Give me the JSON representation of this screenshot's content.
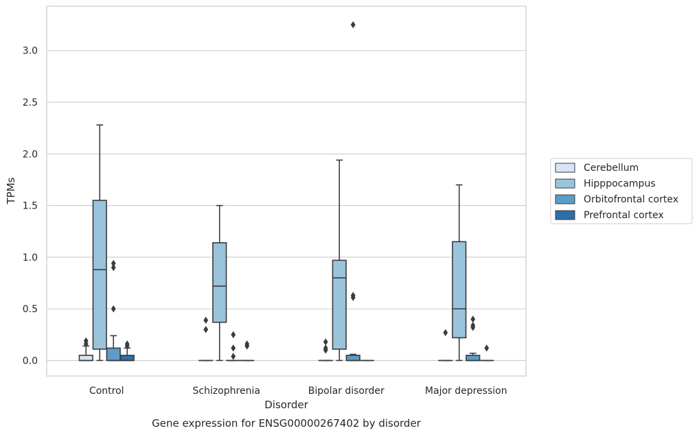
{
  "chart_data": {
    "type": "box",
    "caption": "Gene expression for ENSG00000267402 by disorder",
    "xlabel": "Disorder",
    "ylabel": "TPMs",
    "ylim": [
      -0.15,
      3.43
    ],
    "yticks": [
      "0.0",
      "0.5",
      "1.0",
      "1.5",
      "2.0",
      "2.5",
      "3.0"
    ],
    "grid": true,
    "legend_placement": "right",
    "categories": [
      "Control",
      "Schizophrenia",
      "Bipolar disorder",
      "Major depression"
    ],
    "series": [
      {
        "name": "Cerebellum",
        "color": "#d6e6f4",
        "boxes": [
          {
            "q1": 0.0,
            "median": 0.0,
            "q3": 0.05,
            "whisker_low": 0.0,
            "whisker_high": 0.14,
            "outliers": [
              0.16,
              0.19
            ]
          },
          {
            "q1": 0.0,
            "median": 0.0,
            "q3": 0.0,
            "whisker_low": 0.0,
            "whisker_high": 0.0,
            "outliers": [
              0.3,
              0.39
            ]
          },
          {
            "q1": 0.0,
            "median": 0.0,
            "q3": 0.0,
            "whisker_low": 0.0,
            "whisker_high": 0.0,
            "outliers": [
              0.1,
              0.12,
              0.18
            ]
          },
          {
            "q1": 0.0,
            "median": 0.0,
            "q3": 0.0,
            "whisker_low": 0.0,
            "whisker_high": 0.0,
            "outliers": [
              0.27
            ]
          }
        ]
      },
      {
        "name": "Hipppocampus",
        "color": "#9ac3dc",
        "boxes": [
          {
            "q1": 0.11,
            "median": 0.88,
            "q3": 1.55,
            "whisker_low": 0.0,
            "whisker_high": 2.28,
            "outliers": []
          },
          {
            "q1": 0.37,
            "median": 0.72,
            "q3": 1.14,
            "whisker_low": 0.0,
            "whisker_high": 1.5,
            "outliers": []
          },
          {
            "q1": 0.11,
            "median": 0.8,
            "q3": 0.97,
            "whisker_low": 0.0,
            "whisker_high": 1.94,
            "outliers": []
          },
          {
            "q1": 0.22,
            "median": 0.5,
            "q3": 1.15,
            "whisker_low": 0.0,
            "whisker_high": 1.7,
            "outliers": []
          }
        ]
      },
      {
        "name": "Orbitofrontal cortex",
        "color": "#5b9cc9",
        "boxes": [
          {
            "q1": 0.0,
            "median": 0.0,
            "q3": 0.12,
            "whisker_low": 0.0,
            "whisker_high": 0.24,
            "outliers": [
              0.5,
              0.9,
              0.94
            ]
          },
          {
            "q1": 0.0,
            "median": 0.0,
            "q3": 0.0,
            "whisker_low": 0.0,
            "whisker_high": 0.0,
            "outliers": [
              0.04,
              0.12,
              0.25
            ]
          },
          {
            "q1": 0.0,
            "median": 0.0,
            "q3": 0.05,
            "whisker_low": 0.0,
            "whisker_high": 0.06,
            "outliers": [
              0.61,
              0.63,
              3.25
            ]
          },
          {
            "q1": 0.0,
            "median": 0.0,
            "q3": 0.05,
            "whisker_low": 0.0,
            "whisker_high": 0.07,
            "outliers": [
              0.32,
              0.34,
              0.4
            ]
          }
        ]
      },
      {
        "name": "Prefrontal cortex",
        "color": "#2d6ea8",
        "boxes": [
          {
            "q1": 0.0,
            "median": 0.0,
            "q3": 0.05,
            "whisker_low": 0.0,
            "whisker_high": 0.12,
            "outliers": [
              0.14,
              0.16
            ]
          },
          {
            "q1": 0.0,
            "median": 0.0,
            "q3": 0.0,
            "whisker_low": 0.0,
            "whisker_high": 0.0,
            "outliers": [
              0.14,
              0.16
            ]
          },
          {
            "q1": 0.0,
            "median": 0.0,
            "q3": 0.0,
            "whisker_low": 0.0,
            "whisker_high": 0.0,
            "outliers": []
          },
          {
            "q1": 0.0,
            "median": 0.0,
            "q3": 0.0,
            "whisker_low": 0.0,
            "whisker_high": 0.0,
            "outliers": [
              0.12
            ]
          }
        ]
      }
    ]
  }
}
